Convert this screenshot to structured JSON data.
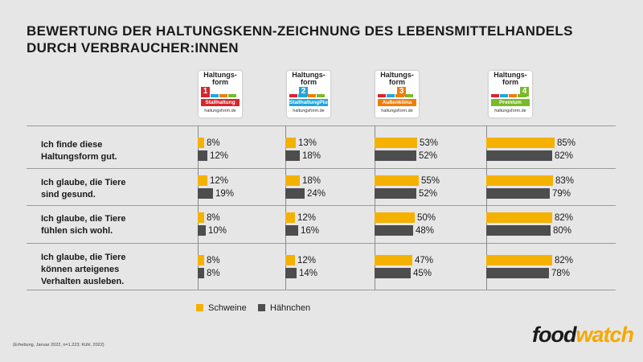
{
  "title_lines": [
    "BEWERTUNG DER HALTUNGSKENN-ZEICHNUNG DES LEBENSMITTELHANDELS",
    "DURCH VERBRAUCHER:INNEN"
  ],
  "logos": [
    {
      "title1": "Haltungs-",
      "title2": "form",
      "number": "1",
      "band": "Stallhaltung",
      "url": "haltungsform.de",
      "color": "#d6262c"
    },
    {
      "title1": "Haltungs-",
      "title2": "form",
      "number": "2",
      "band": "StallhaltungPlus",
      "url": "haltungsform.de",
      "color": "#20a6dd"
    },
    {
      "title1": "Haltungs-",
      "title2": "form",
      "number": "3",
      "band": "Außenklima",
      "url": "haltungsform.de",
      "color": "#f07d0a"
    },
    {
      "title1": "Haltungs-",
      "title2": "form",
      "number": "4",
      "band": "Premium",
      "url": "haltungsform.de",
      "color": "#7ab929"
    }
  ],
  "step_colors": [
    "#d6262c",
    "#20a6dd",
    "#f07d0a",
    "#7ab929"
  ],
  "rows": [
    [
      "Ich finde diese",
      "Haltungsform gut."
    ],
    [
      "Ich glaube, die Tiere",
      "sind gesund."
    ],
    [
      "Ich glaube, die Tiere",
      "fühlen sich wohl."
    ],
    [
      "Ich glaube, die Tiere",
      "können arteigenes",
      "Verhalten ausleben."
    ]
  ],
  "chart_data": {
    "type": "bar",
    "orientation": "horizontal",
    "categories": [
      "Ich finde diese Haltungsform gut.",
      "Ich glaube, die Tiere sind gesund.",
      "Ich glaube, die Tiere fühlen sich wohl.",
      "Ich glaube, die Tiere können arteigenes Verhalten ausleben."
    ],
    "groups": [
      "Haltungsform 1",
      "Haltungsform 2",
      "Haltungsform 3",
      "Haltungsform 4"
    ],
    "series": [
      {
        "name": "Schweine",
        "color": "#f5b100",
        "values": [
          [
            8,
            13,
            53,
            85
          ],
          [
            12,
            18,
            55,
            83
          ],
          [
            8,
            12,
            50,
            82
          ],
          [
            8,
            12,
            47,
            82
          ]
        ]
      },
      {
        "name": "Hähnchen",
        "color": "#4d4d4d",
        "values": [
          [
            12,
            18,
            52,
            82
          ],
          [
            19,
            24,
            52,
            79
          ],
          [
            10,
            16,
            48,
            80
          ],
          [
            8,
            14,
            45,
            78
          ]
        ]
      }
    ],
    "unit": "%",
    "xlim": [
      0,
      100
    ],
    "title": "BEWERTUNG DER HALTUNGSKENN-ZEICHNUNG DES LEBENSMITTELHANDELS DURCH VERBRAUCHER:INNEN",
    "legend_position": "bottom"
  },
  "source": "(Erhebung, Januar 2022, n=1.223; Kühl, 2022)",
  "brand": {
    "part1": "food",
    "part2": "watch"
  }
}
